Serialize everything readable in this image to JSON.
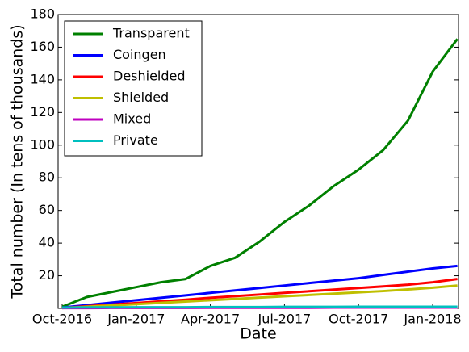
{
  "chart_data": {
    "type": "line",
    "x_label": "Date",
    "y_label": "Total number (In tens of thousands)",
    "categories": [
      "Oct-2016",
      null,
      null,
      "Jan-2017",
      null,
      null,
      "Apr-2017",
      null,
      null,
      "Jul-2017",
      null,
      null,
      "Oct-2017",
      null,
      null,
      "Jan-2018",
      null
    ],
    "series": [
      {
        "name": "Transparent",
        "color": "#008000",
        "values": [
          1,
          7,
          10,
          13,
          16,
          18,
          26,
          31,
          41,
          53,
          63,
          75,
          85,
          97,
          115,
          145,
          165
        ]
      },
      {
        "name": "Coingen",
        "color": "#0000ff",
        "values": [
          0.5,
          2,
          3.5,
          5,
          6.5,
          8,
          9.5,
          11,
          12.5,
          14,
          15.5,
          17,
          18.5,
          20.5,
          22.5,
          24.5,
          26
        ]
      },
      {
        "name": "Deshielded",
        "color": "#ff0000",
        "values": [
          0.3,
          1.3,
          2.3,
          3.3,
          4.3,
          5.3,
          6.5,
          7.5,
          8.5,
          9.5,
          10.5,
          11.5,
          12.5,
          13.5,
          14.5,
          16,
          18
        ]
      },
      {
        "name": "Shielded",
        "color": "#bfbf00",
        "values": [
          0.2,
          1,
          1.8,
          2.6,
          3.4,
          4.2,
          5,
          5.8,
          6.6,
          7.4,
          8.2,
          9,
          9.8,
          10.6,
          11.6,
          12.7,
          14
        ]
      },
      {
        "name": "Mixed",
        "color": "#bf00bf",
        "values": [
          0.2,
          0.2,
          0.3,
          0.3,
          0.3,
          0.3,
          0.4,
          0.4,
          0.4,
          0.4,
          0.4,
          0.5,
          0.5,
          0.5,
          0.5,
          0.5,
          0.5
        ]
      },
      {
        "name": "Private",
        "color": "#00bfbf",
        "values": [
          0.5,
          0.6,
          0.6,
          0.7,
          0.7,
          0.7,
          0.8,
          0.8,
          0.8,
          0.9,
          0.9,
          0.9,
          1,
          1,
          1,
          1,
          1
        ]
      }
    ],
    "ylim": [
      0,
      180
    ],
    "yticks": [
      20,
      40,
      60,
      80,
      100,
      120,
      140,
      160,
      180
    ],
    "legend": "upper-left"
  }
}
